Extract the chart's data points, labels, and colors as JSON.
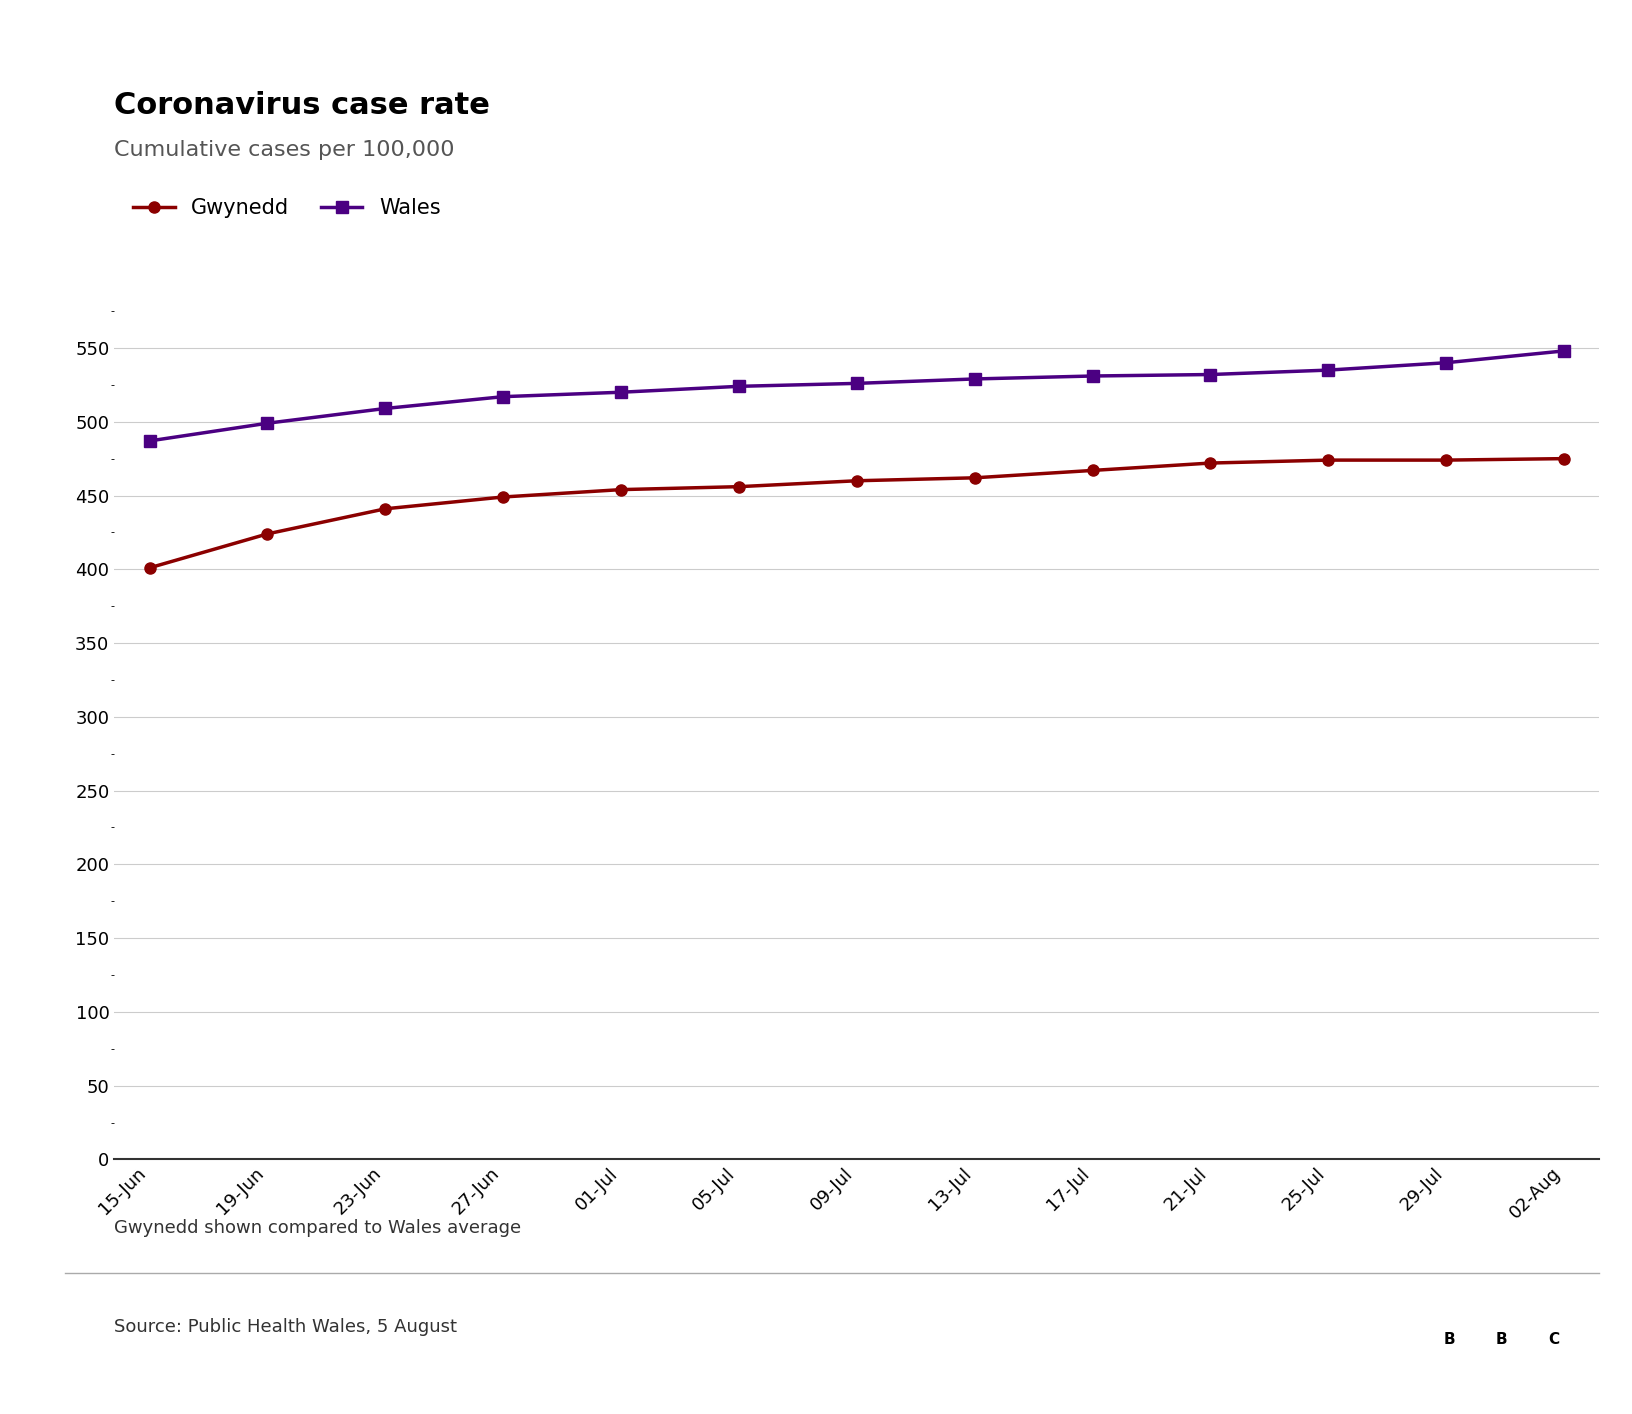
{
  "title": "Coronavirus case rate",
  "subtitle": "Cumulative cases per 100,000",
  "footer_note": "Gwynedd shown compared to Wales average",
  "source": "Source: Public Health Wales, 5 August",
  "x_labels": [
    "15-Jun",
    "19-Jun",
    "23-Jun",
    "27-Jun",
    "01-Jul",
    "05-Jul",
    "09-Jul",
    "13-Jul",
    "17-Jul",
    "21-Jul",
    "25-Jul",
    "29-Jul",
    "02-Aug"
  ],
  "gwynedd_values": [
    401,
    424,
    441,
    449,
    454,
    456,
    460,
    462,
    467,
    472,
    474,
    474,
    475
  ],
  "wales_values": [
    487,
    499,
    509,
    517,
    520,
    524,
    526,
    529,
    531,
    532,
    535,
    540,
    548
  ],
  "gwynedd_color": "#8b0000",
  "wales_color": "#4b0082",
  "line_width": 2.5,
  "marker_size": 8,
  "gwynedd_marker": "o",
  "wales_marker": "s",
  "ylim_min": 0,
  "ylim_max": 575,
  "ytick_interval": 50,
  "background_color": "#ffffff",
  "title_fontsize": 22,
  "subtitle_fontsize": 16,
  "legend_fontsize": 15,
  "tick_fontsize": 13,
  "footer_fontsize": 13,
  "source_fontsize": 13
}
